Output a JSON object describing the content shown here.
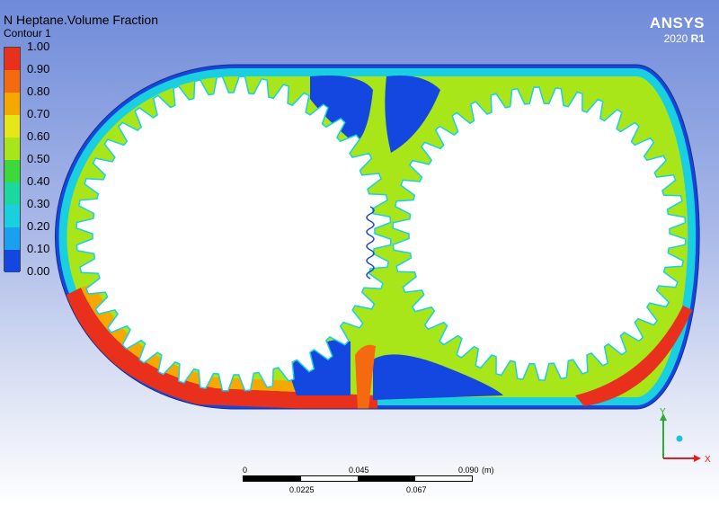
{
  "title": "N Heptane.Volume Fraction",
  "subtitle": "Contour 1",
  "legend": {
    "ticks": [
      "1.00",
      "0.90",
      "0.80",
      "0.70",
      "0.60",
      "0.50",
      "0.40",
      "0.30",
      "0.20",
      "0.10",
      "0.00"
    ],
    "colors": [
      "#e8301c",
      "#f56a10",
      "#f5a800",
      "#e6e61a",
      "#a8e61a",
      "#3cd83c",
      "#1ad8a0",
      "#1ad0e0",
      "#1aa0f0",
      "#1446e0"
    ]
  },
  "brand": {
    "name": "ANSYS",
    "version_year": "2020",
    "version_rel": "R1"
  },
  "scale": {
    "top_labels": [
      "0",
      "0.045",
      "0.090",
      "(m)"
    ],
    "bottom_labels": [
      "0.0225",
      "0.067"
    ]
  },
  "axes": {
    "y": "Y",
    "x": "X"
  },
  "colors": {
    "fluid_background": "#a8e61a",
    "gear_body": "#ffffff"
  }
}
